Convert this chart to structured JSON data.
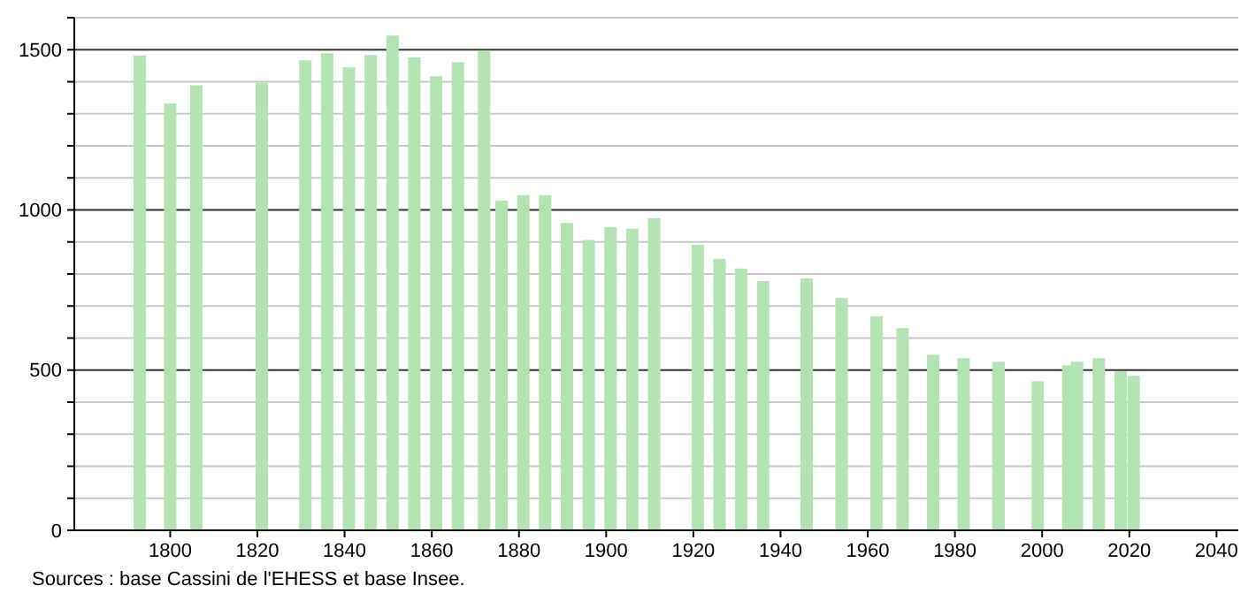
{
  "chart_data": {
    "type": "bar",
    "color": "#b3e3b3",
    "x": [
      1793,
      1800,
      1806,
      1821,
      1831,
      1836,
      1841,
      1846,
      1851,
      1856,
      1861,
      1866,
      1872,
      1876,
      1881,
      1886,
      1891,
      1896,
      1901,
      1906,
      1911,
      1921,
      1926,
      1931,
      1936,
      1946,
      1954,
      1962,
      1968,
      1975,
      1982,
      1990,
      1999,
      2006,
      2008,
      2013,
      2018,
      2021
    ],
    "values": [
      1482,
      1332,
      1389,
      1397,
      1467,
      1489,
      1445,
      1483,
      1544,
      1476,
      1417,
      1461,
      1498,
      1029,
      1046,
      1046,
      959,
      906,
      946,
      941,
      974,
      891,
      847,
      817,
      778,
      786,
      725,
      668,
      631,
      548,
      537,
      526,
      465,
      515,
      526,
      537,
      496,
      482
    ],
    "xlim": [
      1778,
      2045
    ],
    "xticks": [
      1800,
      1820,
      1840,
      1860,
      1880,
      1900,
      1920,
      1940,
      1960,
      1980,
      2000,
      2020,
      2040
    ],
    "ylim": [
      0,
      1600
    ],
    "yticks": [
      0,
      {
        "value": 100,
        "label": null
      },
      {
        "value": 200,
        "label": null
      },
      {
        "value": 300,
        "label": null
      },
      {
        "value": 400,
        "label": null
      },
      500,
      {
        "value": 600,
        "label": null
      },
      {
        "value": 700,
        "label": null
      },
      {
        "value": 800,
        "label": null
      },
      {
        "value": 900,
        "label": null
      },
      1000,
      {
        "value": 1100,
        "label": null
      },
      {
        "value": 1200,
        "label": null
      },
      {
        "value": 1300,
        "label": null
      },
      {
        "value": 1400,
        "label": null
      },
      1500,
      {
        "value": 1600,
        "label": null
      }
    ],
    "grid": "y",
    "annotations": [
      "Sources : base Cassini de l'EHESS et base Insee."
    ]
  }
}
